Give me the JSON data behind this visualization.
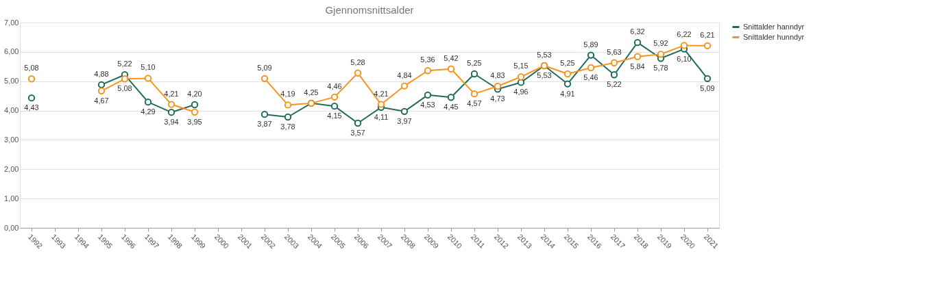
{
  "chart_data": {
    "type": "line",
    "title": "Gjennomsnittsalder",
    "categories": [
      "1992",
      "1993",
      "1994",
      "1995",
      "1996",
      "1997",
      "1998",
      "1999",
      "2000",
      "2001",
      "2002",
      "2003",
      "2004",
      "2005",
      "2006",
      "2007",
      "2008",
      "2009",
      "2010",
      "2011",
      "2012",
      "2013",
      "2014",
      "2015",
      "2016",
      "2017",
      "2018",
      "2019",
      "2020",
      "2021"
    ],
    "series": [
      {
        "name": "Snittalder hanndyr",
        "color": "#1f6b5c",
        "values": [
          4.43,
          null,
          null,
          4.88,
          5.22,
          4.29,
          3.94,
          4.2,
          null,
          null,
          3.87,
          3.78,
          4.25,
          4.15,
          3.57,
          4.11,
          3.97,
          4.53,
          4.45,
          5.25,
          4.73,
          4.96,
          5.53,
          4.91,
          5.89,
          5.22,
          6.32,
          5.78,
          6.1,
          5.09
        ],
        "value_labels": [
          "4,43",
          null,
          null,
          "4,88",
          "5,22",
          "4,29",
          "3,94",
          "4,20",
          null,
          null,
          "3,87",
          "3,78",
          "4,25",
          "4,15",
          "3,57",
          "4,11",
          "3,97",
          "4,53",
          "4,45",
          "5,25",
          "4,73",
          "4,96",
          "5,53",
          "4,91",
          "5,89",
          "5,22",
          "6,32",
          "5,78",
          "6,10",
          "5,09"
        ]
      },
      {
        "name": "Snittalder hunndyr",
        "color": "#f7941d",
        "values": [
          5.08,
          null,
          null,
          4.67,
          5.08,
          5.1,
          4.21,
          3.95,
          null,
          null,
          5.09,
          4.19,
          4.25,
          4.46,
          5.28,
          4.21,
          4.84,
          5.36,
          5.42,
          4.57,
          4.83,
          5.15,
          5.53,
          5.25,
          5.46,
          5.63,
          5.84,
          5.92,
          6.22,
          6.21
        ],
        "value_labels": [
          "5,08",
          null,
          null,
          "4,67",
          "5,08",
          "5,10",
          "4,21",
          "3,95",
          null,
          null,
          "5,09",
          "4,19",
          null,
          "4,46",
          "5,28",
          "4,21",
          "4,84",
          "5,36",
          "5,42",
          "4,57",
          "4,83",
          "5,15",
          "5,53",
          "5,25",
          "5,46",
          "5,63",
          "5,84",
          "5,92",
          "6,22",
          "6,21"
        ]
      }
    ],
    "ylim": [
      0,
      7
    ],
    "yticks": [
      {
        "value": 0,
        "label": "0,00"
      },
      {
        "value": 1,
        "label": "1,00"
      },
      {
        "value": 2,
        "label": "2,00"
      },
      {
        "value": 3,
        "label": "3,00"
      },
      {
        "value": 4,
        "label": "4,00"
      },
      {
        "value": 5,
        "label": "5,00"
      },
      {
        "value": 6,
        "label": "6,00"
      },
      {
        "value": 7,
        "label": "7,00"
      }
    ],
    "grid": "y",
    "legend": "right",
    "marker": "circle",
    "line_style": "solid"
  }
}
